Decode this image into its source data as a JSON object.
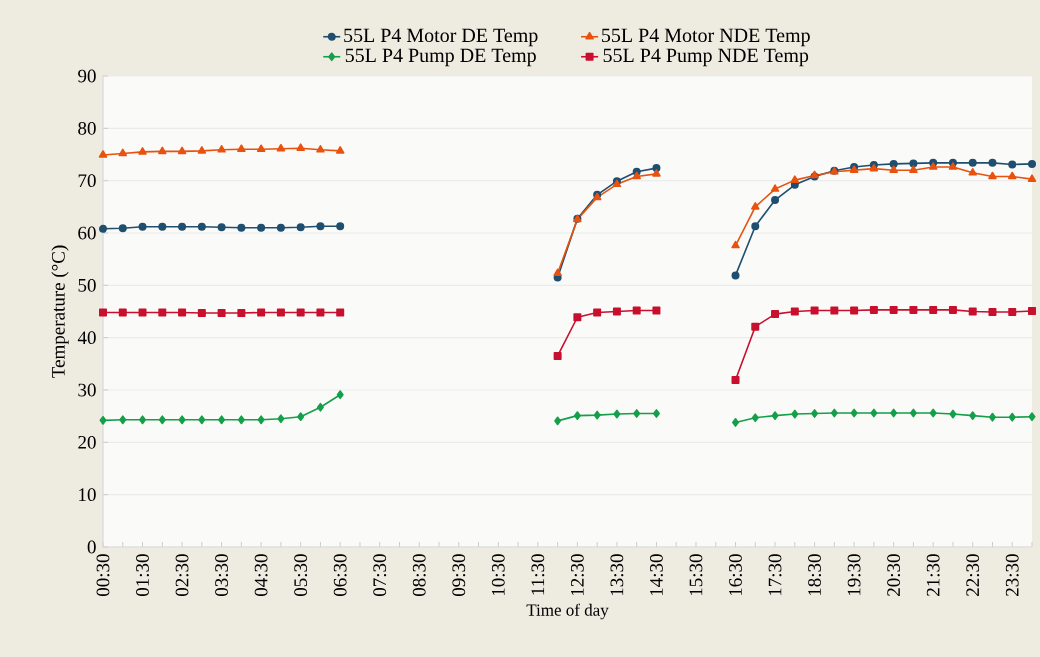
{
  "chart_data": {
    "type": "line",
    "xlabel": "Time of day",
    "ylabel": "Temperature (°C)",
    "categories": [
      "00:30",
      null,
      "01:30",
      null,
      "02:30",
      null,
      "03:30",
      null,
      "04:30",
      null,
      "05:30",
      null,
      "06:30",
      null,
      "07:30",
      null,
      "08:30",
      null,
      "09:30",
      null,
      "10:30",
      null,
      "11:30",
      null,
      "12:30",
      null,
      "13:30",
      null,
      "14:30",
      null,
      "15:30",
      null,
      "16:30",
      null,
      "17:30",
      null,
      "18:30",
      null,
      "19:30",
      null,
      "20:30",
      null,
      "21:30",
      null,
      "22:30",
      null,
      "23:30",
      null
    ],
    "ylim": [
      0,
      90
    ],
    "yticks": [
      0,
      10,
      20,
      30,
      40,
      50,
      60,
      70,
      80,
      90
    ],
    "grid": "y",
    "legend": "top",
    "line_style": "solid",
    "series": [
      {
        "name": "55L P4 Motor DE Temp",
        "color": "#1f4e6e",
        "marker": "circle",
        "values": [
          60.8,
          60.9,
          61.2,
          61.2,
          61.2,
          61.2,
          61.1,
          61.0,
          61.0,
          61.0,
          61.1,
          61.3,
          61.3,
          null,
          null,
          null,
          null,
          null,
          null,
          null,
          null,
          null,
          null,
          51.5,
          62.7,
          67.3,
          69.9,
          71.7,
          72.4,
          null,
          null,
          null,
          51.9,
          61.3,
          66.3,
          69.2,
          70.8,
          71.9,
          72.6,
          73.0,
          73.2,
          73.3,
          73.4,
          73.4,
          73.4,
          73.4,
          73.1,
          73.2
        ]
      },
      {
        "name": "55L P4 Motor NDE Temp",
        "color": "#e8520f",
        "marker": "triangle",
        "values": [
          74.9,
          75.2,
          75.5,
          75.6,
          75.6,
          75.7,
          75.9,
          76.0,
          76.0,
          76.1,
          76.2,
          75.9,
          75.7,
          null,
          null,
          null,
          null,
          null,
          null,
          null,
          null,
          null,
          null,
          52.3,
          62.6,
          66.8,
          69.3,
          70.8,
          71.3,
          null,
          null,
          null,
          57.6,
          65.0,
          68.4,
          70.1,
          71.0,
          71.7,
          72.0,
          72.3,
          72.0,
          72.0,
          72.6,
          72.6,
          71.5,
          70.8,
          70.8,
          70.3
        ]
      },
      {
        "name": "55L P4 Pump DE Temp",
        "color": "#14a04a",
        "marker": "diamond",
        "values": [
          24.2,
          24.3,
          24.3,
          24.3,
          24.3,
          24.3,
          24.3,
          24.3,
          24.3,
          24.5,
          24.9,
          26.7,
          29.1,
          null,
          null,
          null,
          null,
          null,
          null,
          null,
          null,
          null,
          null,
          24.1,
          25.1,
          25.2,
          25.4,
          25.5,
          25.5,
          null,
          null,
          null,
          23.8,
          24.7,
          25.1,
          25.4,
          25.5,
          25.6,
          25.6,
          25.6,
          25.6,
          25.6,
          25.6,
          25.4,
          25.1,
          24.8,
          24.8,
          24.9
        ]
      },
      {
        "name": "55L P4 Pump NDE Temp",
        "color": "#c8102e",
        "marker": "square",
        "values": [
          44.8,
          44.8,
          44.8,
          44.8,
          44.8,
          44.7,
          44.7,
          44.7,
          44.8,
          44.8,
          44.8,
          44.8,
          44.8,
          null,
          null,
          null,
          null,
          null,
          null,
          null,
          null,
          null,
          null,
          36.5,
          43.9,
          44.8,
          45.0,
          45.2,
          45.2,
          null,
          null,
          null,
          31.9,
          42.1,
          44.5,
          45.0,
          45.2,
          45.2,
          45.2,
          45.3,
          45.3,
          45.3,
          45.3,
          45.3,
          45.0,
          44.9,
          44.9,
          45.1
        ]
      }
    ]
  }
}
